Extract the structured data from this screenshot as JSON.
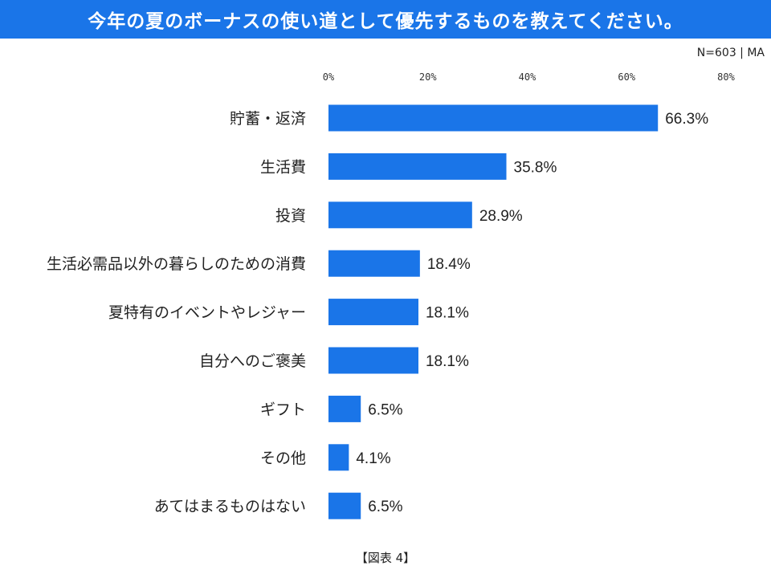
{
  "chart_data": {
    "type": "bar",
    "orientation": "horizontal",
    "title": "今年の夏のボーナスの使い道として優先するものを教えてください。",
    "note": "N=603 | MA",
    "caption": "【図表 4】",
    "xlim": [
      0,
      80
    ],
    "ticks": [
      0,
      20,
      40,
      60,
      80
    ],
    "tick_labels": [
      "0%",
      "20%",
      "40%",
      "60%",
      "80%"
    ],
    "categories": [
      "貯蓄・返済",
      "生活費",
      "投資",
      "生活必需品以外の暮らしのための消費",
      "夏特有のイベントやレジャー",
      "自分へのご褒美",
      "ギフト",
      "その他",
      "あてはまるものはない"
    ],
    "values": [
      66.3,
      35.8,
      28.9,
      18.4,
      18.1,
      18.1,
      6.5,
      4.1,
      6.5
    ],
    "value_labels": [
      "66.3%",
      "35.8%",
      "28.9%",
      "18.4%",
      "18.1%",
      "18.1%",
      "6.5%",
      "4.1%",
      "6.5%"
    ],
    "bar_color": "#1a75e8",
    "grid": false
  }
}
